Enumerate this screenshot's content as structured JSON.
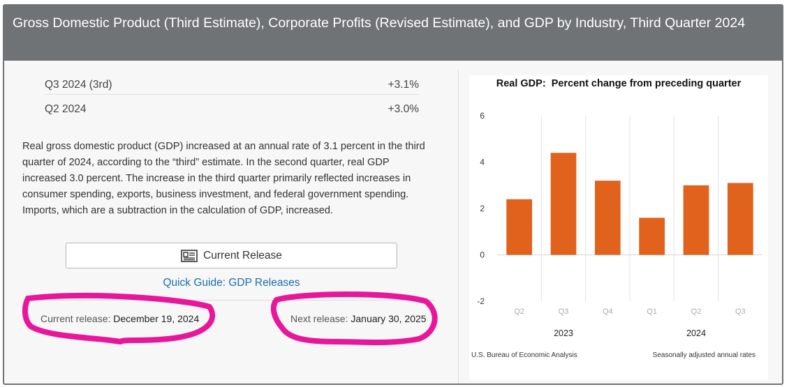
{
  "header": {
    "title": "Gross Domestic Product (Third Estimate), Corporate Profits (Revised Estimate), and GDP by Industry, Third Quarter 2024"
  },
  "stats": [
    {
      "label": "Q3 2024 (3rd)",
      "value": "+3.1%"
    },
    {
      "label": "Q2 2024",
      "value": "+3.0%"
    }
  ],
  "description": "Real gross domestic product (GDP) increased at an annual rate of 3.1 percent in the third quarter of 2024, according to the “third” estimate. In the second quarter, real GDP increased 3.0 percent. The increase in the third quarter primarily reflected increases in consumer spending, exports, business investment, and federal government spending. Imports, which are a subtraction in the calculation of GDP, increased.",
  "buttons": {
    "current_release": "Current Release",
    "quick_guide": "Quick Guide: GDP Releases"
  },
  "releases": {
    "current_label": "Current release:",
    "current_date": "December 19, 2024",
    "next_label": "Next release:",
    "next_date": "January 30, 2025"
  },
  "icons": {
    "release_icon": "newspaper-icon"
  },
  "colors": {
    "header_bg": "#6f7375",
    "bar": "#e0621c",
    "link": "#1b6fa8",
    "annotation": "#e8169a"
  },
  "chart_data": {
    "type": "bar",
    "title": "Real GDP:  Percent change from preceding quarter",
    "categories": [
      "Q2",
      "Q3",
      "Q4",
      "Q1",
      "Q2",
      "Q3"
    ],
    "years": [
      {
        "label": "2023",
        "span": [
          0,
          2
        ]
      },
      {
        "label": "2024",
        "span": [
          3,
          5
        ]
      }
    ],
    "values": [
      2.4,
      4.4,
      3.2,
      1.6,
      3.0,
      3.1
    ],
    "ylim": [
      -2,
      6
    ],
    "yticks": [
      -2,
      0,
      2,
      4,
      6
    ],
    "grid": "vertical",
    "source": "U.S. Bureau of Economic Analysis",
    "note": "Seasonally adjusted annual rates"
  }
}
